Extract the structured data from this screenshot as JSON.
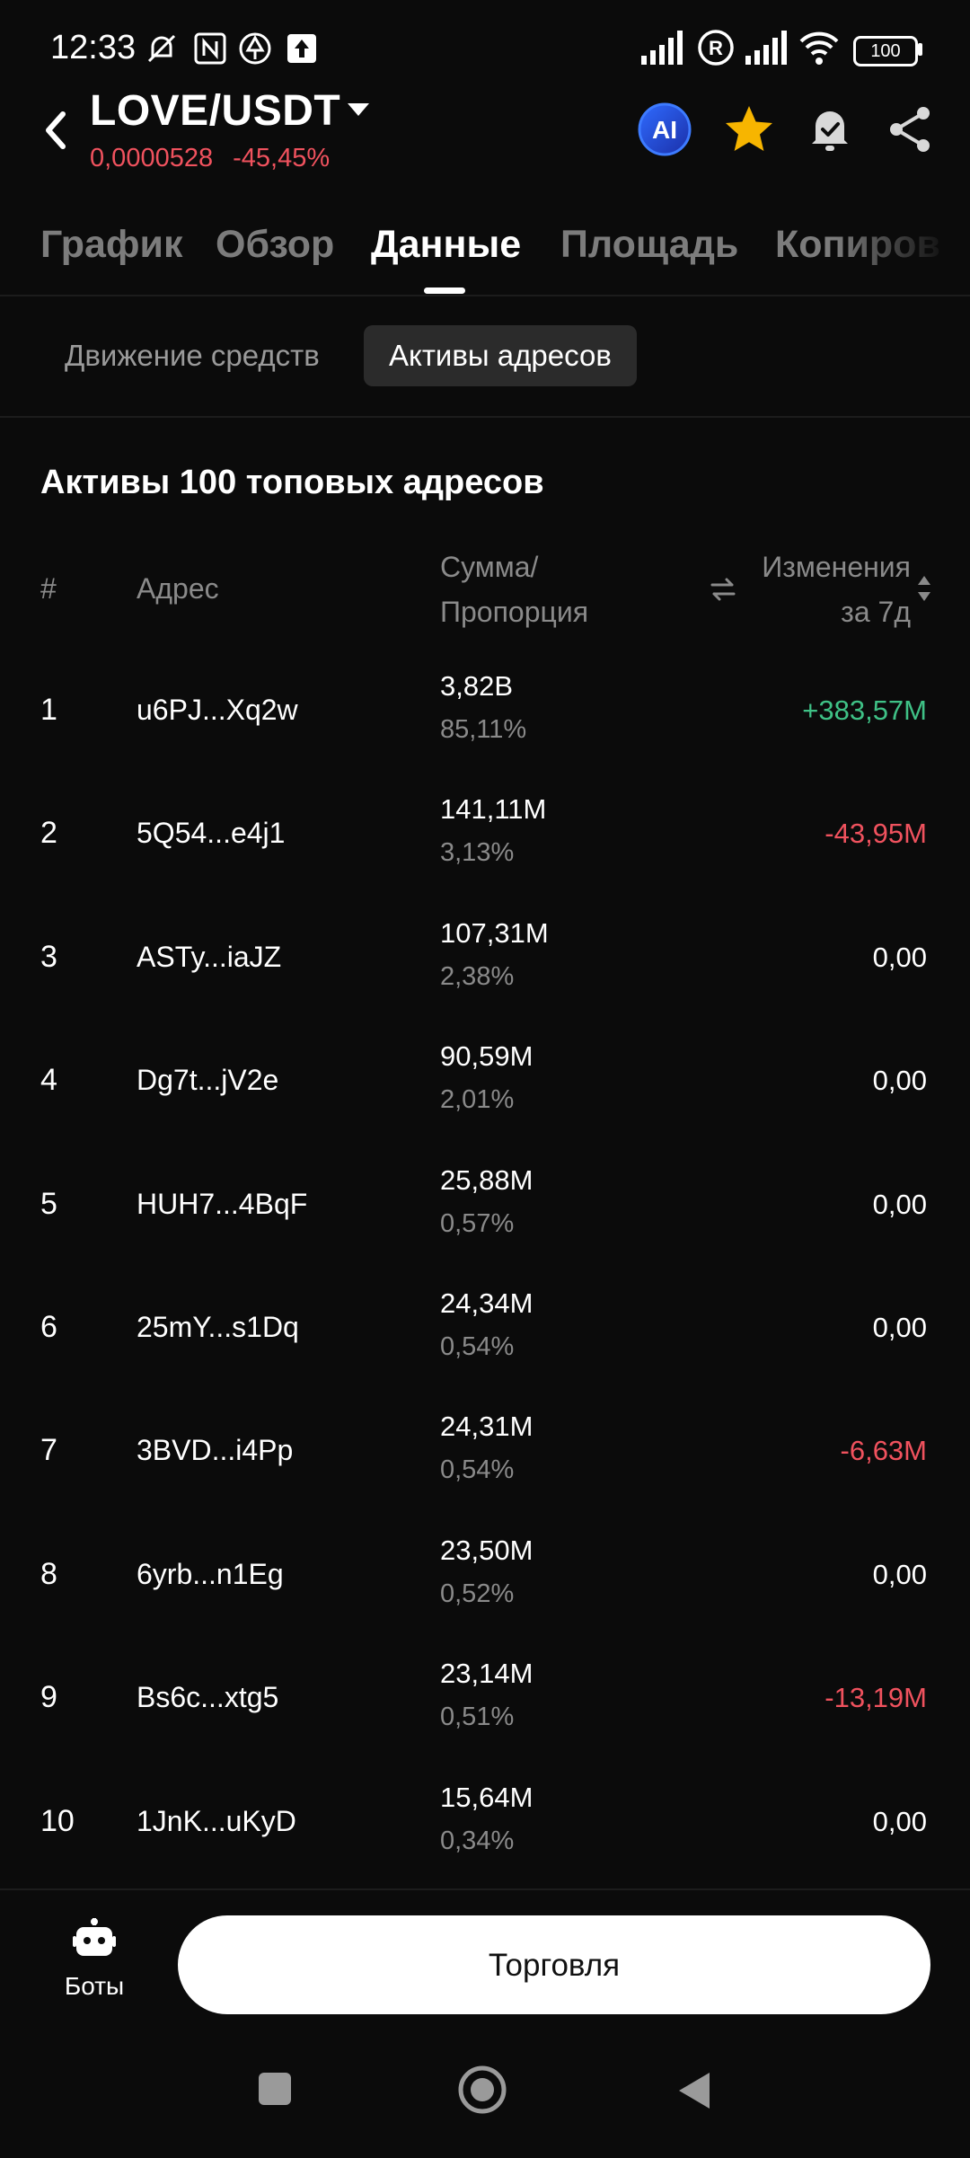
{
  "status_bar": {
    "time": "12:33",
    "battery": "100"
  },
  "header": {
    "pair": "LOVE/USDT",
    "price": "0,0000528",
    "change": "-45,45%",
    "ai_label": "AI"
  },
  "tabs": [
    "График",
    "Обзор",
    "Данные",
    "Площадь",
    "Копиров"
  ],
  "active_tab": "Данные",
  "sub_tabs": [
    "Движение средств",
    "Активы адресов"
  ],
  "section": {
    "title": "Активы 100 топовых адресов",
    "columns": {
      "rank": "#",
      "address": "Адрес",
      "amount_line1": "Сумма/",
      "amount_line2": "Пропорция",
      "change_line1": "Изменения",
      "change_line2": "за 7д"
    }
  },
  "rows": [
    {
      "rank": "1",
      "address": "u6PJ...Xq2w",
      "amount": "3,82B",
      "share": "85,11%",
      "change": "+383,57M",
      "trend": "pos"
    },
    {
      "rank": "2",
      "address": "5Q54...e4j1",
      "amount": "141,11M",
      "share": "3,13%",
      "change": "-43,95M",
      "trend": "neg"
    },
    {
      "rank": "3",
      "address": "ASTy...iaJZ",
      "amount": "107,31M",
      "share": "2,38%",
      "change": "0,00",
      "trend": "neu"
    },
    {
      "rank": "4",
      "address": "Dg7t...jV2e",
      "amount": "90,59M",
      "share": "2,01%",
      "change": "0,00",
      "trend": "neu"
    },
    {
      "rank": "5",
      "address": "HUH7...4BqF",
      "amount": "25,88M",
      "share": "0,57%",
      "change": "0,00",
      "trend": "neu"
    },
    {
      "rank": "6",
      "address": "25mY...s1Dq",
      "amount": "24,34M",
      "share": "0,54%",
      "change": "0,00",
      "trend": "neu"
    },
    {
      "rank": "7",
      "address": "3BVD...i4Pp",
      "amount": "24,31M",
      "share": "0,54%",
      "change": "-6,63M",
      "trend": "neg"
    },
    {
      "rank": "8",
      "address": "6yrb...n1Eg",
      "amount": "23,50M",
      "share": "0,52%",
      "change": "0,00",
      "trend": "neu"
    },
    {
      "rank": "9",
      "address": "Bs6c...xtg5",
      "amount": "23,14M",
      "share": "0,51%",
      "change": "-13,19M",
      "trend": "neg"
    },
    {
      "rank": "10",
      "address": "1JnK...uKyD",
      "amount": "15,64M",
      "share": "0,34%",
      "change": "0,00",
      "trend": "neu"
    }
  ],
  "bottom": {
    "bots_label": "Боты",
    "trade_label": "Торговля"
  },
  "colors": {
    "positive": "#3fc186",
    "negative": "#f0525e",
    "background": "#0b0b0b",
    "star": "#f7b500"
  },
  "icons": [
    "back-arrow-icon",
    "dropdown-caret-icon",
    "ai-icon",
    "star-icon",
    "bell-check-icon",
    "share-icon",
    "swap-icon",
    "sort-icon",
    "robot-icon"
  ]
}
